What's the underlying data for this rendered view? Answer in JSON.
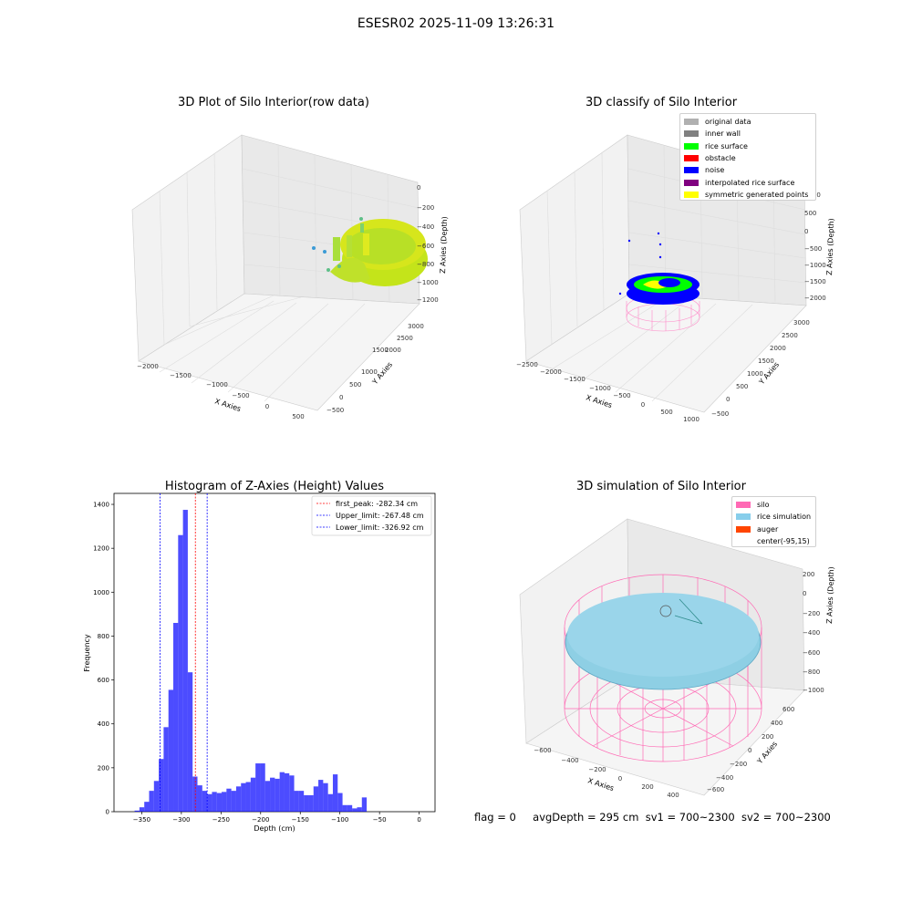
{
  "figure": {
    "suptitle": "ESESR02 2025-11-09 13:26:31",
    "status": {
      "flag": "flag = 0",
      "avg_depth": "avgDepth = 295 cm",
      "sv1": "sv1 = 700~2300",
      "sv2": "sv2 = 700~2300"
    }
  },
  "panels": {
    "raw": {
      "title": "3D Plot of Silo Interior(row data)",
      "xlabel": "X Axies",
      "ylabel": "Y Axies",
      "zlabel": "Z Axies (Depth)",
      "xticks": [
        "−2000",
        "−1500",
        "−1000",
        "−500",
        "0",
        "500"
      ],
      "yticks": [
        "−500",
        "0",
        "500",
        "1000",
        "1500",
        "2000",
        "2500",
        "3000"
      ],
      "zticks": [
        "0",
        "−200",
        "−400",
        "−600",
        "−800",
        "−1000",
        "−1200"
      ],
      "colors": {
        "low": "#c4e41a",
        "high": "#e8ea18",
        "outlier": "#5fbf88"
      }
    },
    "classify": {
      "title": "3D classify of Silo Interior",
      "xlabel": "X Axies",
      "ylabel": "Y Axies",
      "zlabel": "Z Axies (Depth)",
      "xticks": [
        "−2500",
        "−2000",
        "−1500",
        "−1000",
        "−500",
        "0",
        "500",
        "1000"
      ],
      "yticks": [
        "−500",
        "0",
        "500",
        "1000",
        "1500",
        "2000",
        "2500",
        "3000"
      ],
      "zticks": [
        "1000",
        "500",
        "0",
        "−500",
        "−1000",
        "−1500",
        "−2000"
      ],
      "legend": [
        {
          "label": "original data",
          "color": "#b0b0b0"
        },
        {
          "label": "inner wall",
          "color": "#808080"
        },
        {
          "label": "rice surface",
          "color": "#00ff00"
        },
        {
          "label": "obstacle",
          "color": "#ff0000"
        },
        {
          "label": "noise",
          "color": "#0000ff"
        },
        {
          "label": "interpolated rice surface",
          "color": "#800080"
        },
        {
          "label": "symmetric generated points",
          "color": "#ffff00"
        }
      ],
      "colors": {
        "wall": "#ff88c8"
      }
    },
    "simulation": {
      "title": "3D simulation of Silo Interior",
      "xlabel": "X Axies",
      "ylabel": "Y Axies",
      "zlabel": "Z Axies (Depth)",
      "xticks": [
        "−600",
        "−400",
        "−200",
        "0",
        "200",
        "400"
      ],
      "yticks": [
        "−600",
        "−400",
        "−200",
        "0",
        "200",
        "400",
        "600"
      ],
      "zticks": [
        "200",
        "0",
        "−200",
        "−400",
        "−600",
        "−800",
        "−1000"
      ],
      "legend": [
        {
          "label": "silo",
          "color": "#ff69b4"
        },
        {
          "label": "rice simulation",
          "color": "#87ceeb"
        },
        {
          "label": "auger",
          "color": "#ff4500"
        },
        {
          "label": "center(-95,15)",
          "color": "#ffffff"
        }
      ]
    }
  },
  "chart_data": {
    "type": "bar",
    "title": "Histogram of Z-Axies (Height) Values",
    "xlabel": "Depth (cm)",
    "ylabel": "Frequency",
    "xlim": [
      -385,
      20
    ],
    "ylim": [
      0,
      1450
    ],
    "xticks": [
      -350,
      -300,
      -250,
      -200,
      -150,
      -100,
      -50,
      0
    ],
    "yticks": [
      0,
      200,
      400,
      600,
      800,
      1000,
      1200,
      1400
    ],
    "bar_color": "#0000ff",
    "bin_start": -359,
    "bin_width": 6.1,
    "values": [
      5,
      20,
      45,
      95,
      140,
      240,
      385,
      555,
      860,
      1260,
      1375,
      635,
      160,
      120,
      95,
      80,
      90,
      85,
      90,
      105,
      95,
      115,
      130,
      135,
      155,
      220,
      220,
      140,
      155,
      150,
      180,
      175,
      165,
      95,
      95,
      75,
      75,
      115,
      145,
      130,
      80,
      170,
      85,
      30,
      30,
      15,
      20,
      65
    ],
    "vlines": [
      {
        "x": -282.34,
        "label": "first_peak: -282.34 cm",
        "color": "#ff0000"
      },
      {
        "x": -267.48,
        "label": "Upper_limit: -267.48 cm",
        "color": "#0000ff"
      },
      {
        "x": -326.92,
        "label": "Lower_limit: -326.92 cm",
        "color": "#0000ff"
      }
    ]
  }
}
